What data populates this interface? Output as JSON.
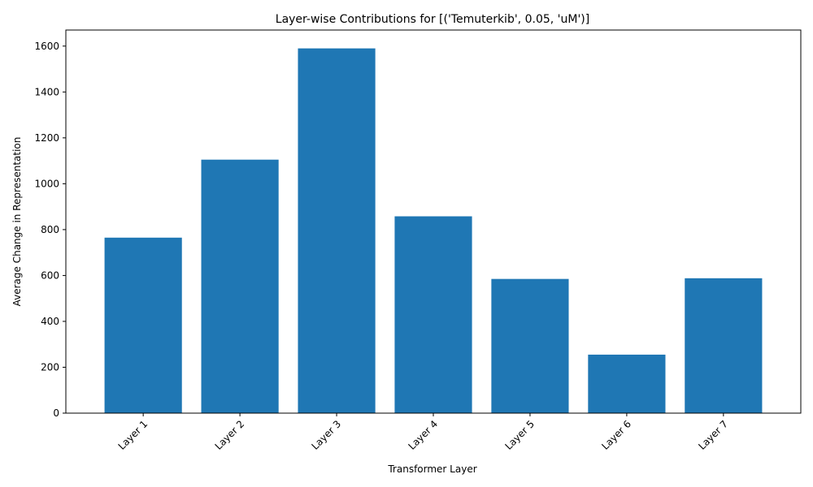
{
  "chart_data": {
    "type": "bar",
    "title": "Layer-wise Contributions for [('Temuterkib', 0.05, 'uM')]",
    "xlabel": "Transformer Layer",
    "ylabel": "Average Change in Representation",
    "categories": [
      "Layer 1",
      "Layer 2",
      "Layer 3",
      "Layer 4",
      "Layer 5",
      "Layer 6",
      "Layer 7"
    ],
    "values": [
      765,
      1105,
      1590,
      858,
      585,
      255,
      588
    ],
    "ylim": [
      0,
      1670
    ],
    "yticks": [
      0,
      200,
      400,
      600,
      800,
      1000,
      1200,
      1400,
      1600
    ],
    "bar_color": "#1f77b4",
    "grid": false,
    "xtick_rotation": 45
  }
}
